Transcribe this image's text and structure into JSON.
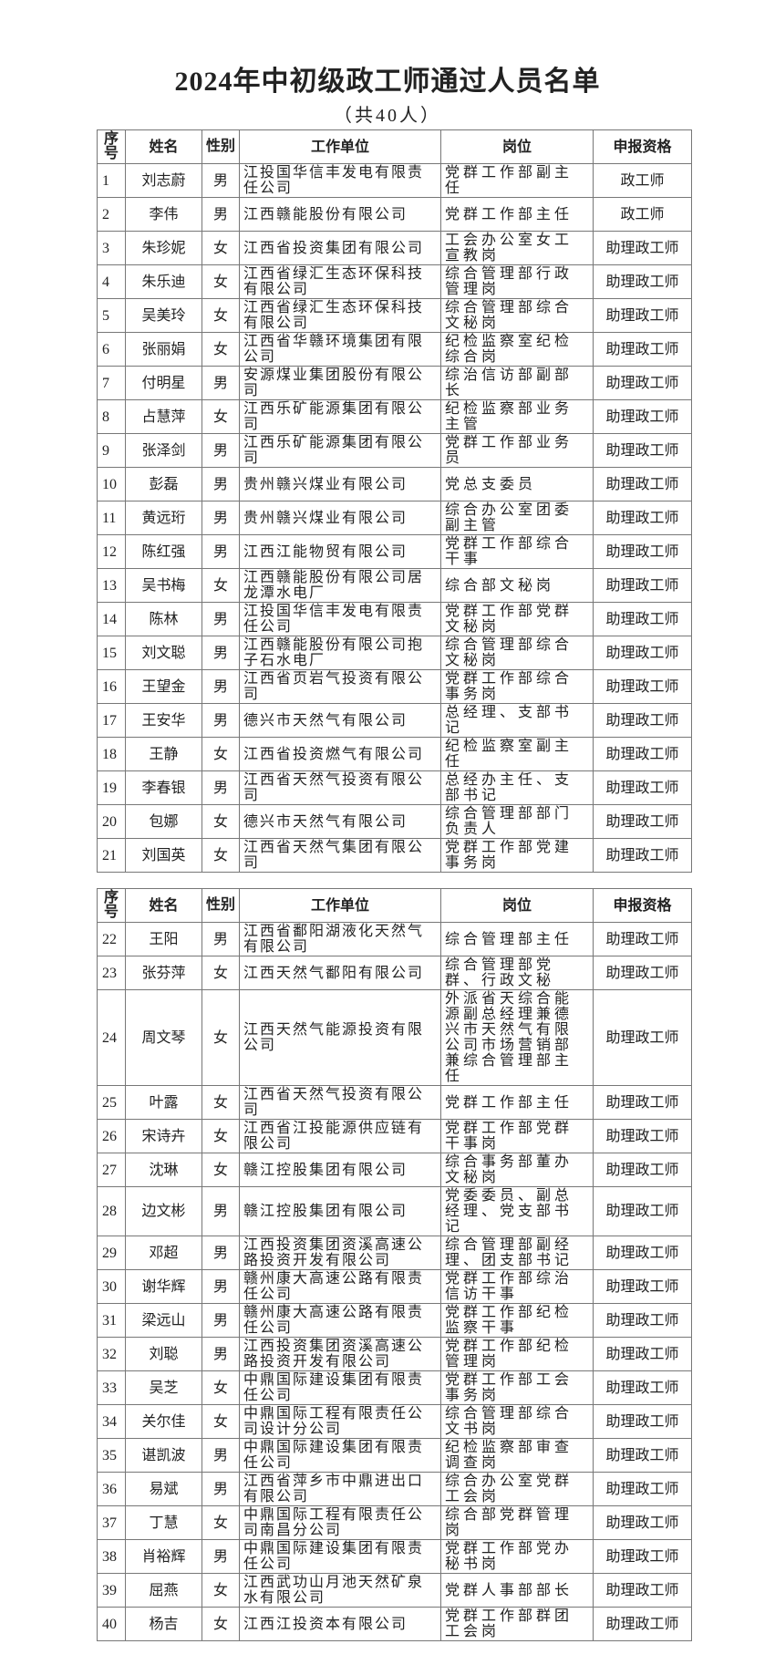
{
  "title": "2024年中初级政工师通过人员名单",
  "subtitle": "（共40人）",
  "header": [
    "序号",
    "姓名",
    "性别",
    "工作单位",
    "岗位",
    "申报资格"
  ],
  "tables": [
    {
      "rows": [
        [
          "1",
          "刘志蔚",
          "男",
          "江投国华信丰发电有限责任公司",
          "党群工作部副主任",
          "政工师"
        ],
        [
          "2",
          "李伟",
          "男",
          "江西赣能股份有限公司",
          "党群工作部主任",
          "政工师"
        ],
        [
          "3",
          "朱珍妮",
          "女",
          "江西省投资集团有限公司",
          "工会办公室女工宣教岗",
          "助理政工师"
        ],
        [
          "4",
          "朱乐迪",
          "女",
          "江西省绿汇生态环保科技有限公司",
          "综合管理部行政管理岗",
          "助理政工师"
        ],
        [
          "5",
          "吴美玲",
          "女",
          "江西省绿汇生态环保科技有限公司",
          "综合管理部综合文秘岗",
          "助理政工师"
        ],
        [
          "6",
          "张丽娟",
          "女",
          "江西省华赣环境集团有限公司",
          "纪检监察室纪检综合岗",
          "助理政工师"
        ],
        [
          "7",
          "付明星",
          "男",
          "安源煤业集团股份有限公司",
          "综治信访部副部长",
          "助理政工师"
        ],
        [
          "8",
          "占慧萍",
          "女",
          "江西乐矿能源集团有限公司",
          "纪检监察部业务主管",
          "助理政工师"
        ],
        [
          "9",
          "张泽剑",
          "男",
          "江西乐矿能源集团有限公司",
          "党群工作部业务员",
          "助理政工师"
        ],
        [
          "10",
          "彭磊",
          "男",
          "贵州赣兴煤业有限公司",
          "党总支委员",
          "助理政工师"
        ],
        [
          "11",
          "黄远珩",
          "男",
          "贵州赣兴煤业有限公司",
          "综合办公室团委副主管",
          "助理政工师"
        ],
        [
          "12",
          "陈红强",
          "男",
          "江西江能物贸有限公司",
          "党群工作部综合干事",
          "助理政工师"
        ],
        [
          "13",
          "吴书梅",
          "女",
          "江西赣能股份有限公司居龙潭水电厂",
          "综合部文秘岗",
          "助理政工师"
        ],
        [
          "14",
          "陈林",
          "男",
          "江投国华信丰发电有限责任公司",
          "党群工作部党群文秘岗",
          "助理政工师"
        ],
        [
          "15",
          "刘文聪",
          "男",
          "江西赣能股份有限公司抱子石水电厂",
          "综合管理部综合文秘岗",
          "助理政工师"
        ],
        [
          "16",
          "王望金",
          "男",
          "江西省页岩气投资有限公司",
          "党群工作部综合事务岗",
          "助理政工师"
        ],
        [
          "17",
          "王安华",
          "男",
          "德兴市天然气有限公司",
          "总经理、支部书记",
          "助理政工师"
        ],
        [
          "18",
          "王静",
          "女",
          "江西省投资燃气有限公司",
          "纪检监察室副主任",
          "助理政工师"
        ],
        [
          "19",
          "李春银",
          "男",
          "江西省天然气投资有限公司",
          "总经办主任、支部书记",
          "助理政工师"
        ],
        [
          "20",
          "包娜",
          "女",
          "德兴市天然气有限公司",
          "综合管理部部门负责人",
          "助理政工师"
        ],
        [
          "21",
          "刘国英",
          "女",
          "江西省天然气集团有限公司",
          "党群工作部党建事务岗",
          "助理政工师"
        ]
      ]
    },
    {
      "rows": [
        [
          "22",
          "王阳",
          "男",
          "江西省鄱阳湖液化天然气有限公司",
          "综合管理部主任",
          "助理政工师"
        ],
        [
          "23",
          "张芬萍",
          "女",
          "江西天然气鄱阳有限公司",
          "综合管理部党群、行政文秘",
          "助理政工师"
        ],
        [
          "24",
          "周文琴",
          "女",
          "江西天然气能源投资有限公司",
          "外派省天综合能源副总经理兼德兴市天然气有限公司市场营销部兼综合管理部主任",
          "助理政工师"
        ],
        [
          "25",
          "叶露",
          "女",
          "江西省天然气投资有限公司",
          "党群工作部主任",
          "助理政工师"
        ],
        [
          "26",
          "宋诗卉",
          "女",
          "江西省江投能源供应链有限公司",
          "党群工作部党群干事岗",
          "助理政工师"
        ],
        [
          "27",
          "沈琳",
          "女",
          "赣江控股集团有限公司",
          "综合事务部董办文秘岗",
          "助理政工师"
        ],
        [
          "28",
          "边文彬",
          "男",
          "赣江控股集团有限公司",
          "党委委员、副总经理、党支部书记",
          "助理政工师"
        ],
        [
          "29",
          "邓超",
          "男",
          "江西投资集团资溪高速公路投资开发有限公司",
          "综合管理部副经理、团支部书记",
          "助理政工师"
        ],
        [
          "30",
          "谢华辉",
          "男",
          "赣州康大高速公路有限责任公司",
          "党群工作部综治信访干事",
          "助理政工师"
        ],
        [
          "31",
          "梁远山",
          "男",
          "赣州康大高速公路有限责任公司",
          "党群工作部纪检监察干事",
          "助理政工师"
        ],
        [
          "32",
          "刘聪",
          "男",
          "江西投资集团资溪高速公路投资开发有限公司",
          "党群工作部纪检管理岗",
          "助理政工师"
        ],
        [
          "33",
          "吴芝",
          "女",
          "中鼎国际建设集团有限责任公司",
          "党群工作部工会事务岗",
          "助理政工师"
        ],
        [
          "34",
          "关尔佳",
          "女",
          "中鼎国际工程有限责任公司设计分公司",
          "综合管理部综合文书岗",
          "助理政工师"
        ],
        [
          "35",
          "谌凯波",
          "男",
          "中鼎国际建设集团有限责任公司",
          "纪检监察部审查调查岗",
          "助理政工师"
        ],
        [
          "36",
          "易斌",
          "男",
          "江西省萍乡市中鼎进出口有限公司",
          "综合办公室党群工会岗",
          "助理政工师"
        ],
        [
          "37",
          "丁慧",
          "女",
          "中鼎国际工程有限责任公司南昌分公司",
          "综合部党群管理岗",
          "助理政工师"
        ],
        [
          "38",
          "肖裕辉",
          "男",
          "中鼎国际建设集团有限责任公司",
          "党群工作部党办秘书岗",
          "助理政工师"
        ],
        [
          "39",
          "屈燕",
          "女",
          "江西武功山月池天然矿泉水有限公司",
          "党群人事部部长",
          "助理政工师"
        ],
        [
          "40",
          "杨吉",
          "女",
          "江西江投资本有限公司",
          "党群工作部群团工会岗",
          "助理政工师"
        ]
      ]
    }
  ]
}
